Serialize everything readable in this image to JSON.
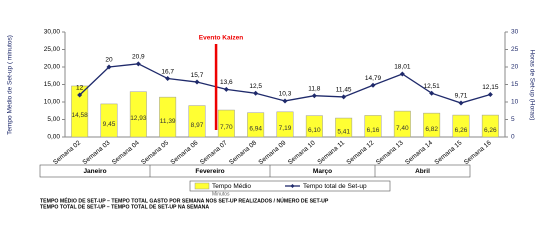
{
  "chart_data": {
    "type": "bar-line",
    "annotation": "Evento Kaizen",
    "y_label": "Tempo Médio de Set-up ( minutos)",
    "y2_label": "Horas de Set-up (Horas)",
    "categories": [
      "Semana 02",
      "Semana 03",
      "Semana 04",
      "Semana 05",
      "Semana 06",
      "Semana 07",
      "Semana 08",
      "Semana 09",
      "Semana 10",
      "Semana 11",
      "Semana 12",
      "Semana 13",
      "Semana 14",
      "Semana 15",
      "Semana 16"
    ],
    "months": [
      "Janeiro",
      "Fevereiro",
      "Março",
      "Abril"
    ],
    "series": [
      {
        "name": "Tempo Médio",
        "color": "#ffff33",
        "kind": "bar",
        "values": [
          14.58,
          9.45,
          12.93,
          11.39,
          8.97,
          7.7,
          6.94,
          7.19,
          6.1,
          5.41,
          6.16,
          7.4,
          6.82,
          6.26,
          6.26
        ],
        "value_labels": [
          "14,58",
          "9,45",
          "12,93",
          "11,39",
          "8,97",
          "7,70",
          "6,94",
          "7,19",
          "6,10",
          "5,41",
          "6,16",
          "7,40",
          "6,82",
          "6,26",
          "6,26"
        ]
      },
      {
        "name": "Tempo total de Set-up",
        "color": "#1f2a6b",
        "kind": "line",
        "axis": "y2",
        "values": [
          12,
          20,
          20.9,
          16.7,
          15.7,
          13.6,
          12.5,
          10.3,
          11.8,
          11.45,
          14.79,
          18.01,
          12.51,
          9.71,
          12.15
        ],
        "value_labels": [
          "12",
          "20",
          "20,9",
          "16,7",
          "15,7",
          "13,6",
          "12,5",
          "10,3",
          "11,8",
          "11,45",
          "14,79",
          "18,01",
          "12,51",
          "9,71",
          "12,15"
        ]
      }
    ],
    "legend_note": "Minutos",
    "ylim": [
      0,
      30
    ],
    "yticks": [
      {
        "value": 0,
        "label": "0,00"
      },
      {
        "value": 5,
        "label": "5,00"
      },
      {
        "value": 10,
        "label": "10,00"
      },
      {
        "value": 15,
        "label": "15,00"
      },
      {
        "value": 20,
        "label": "20,00"
      },
      {
        "value": 25,
        "label": "25,00"
      },
      {
        "value": 30,
        "label": "30,00"
      }
    ],
    "y2lim": [
      0,
      30
    ],
    "y2ticks": [
      0,
      5,
      10,
      15,
      20,
      25,
      30
    ],
    "footnotes": [
      "TEMPO MÉDIO DE SET-UP – TEMPO TOTAL GASTO POR SEMANA NOS SET-UP REALIZADOS / NÚMERO DE SET-UP",
      "TEMPO TOTAL DE SET-UP – TEMPO TOTAL DE SET-UP NA SEMANA"
    ]
  }
}
